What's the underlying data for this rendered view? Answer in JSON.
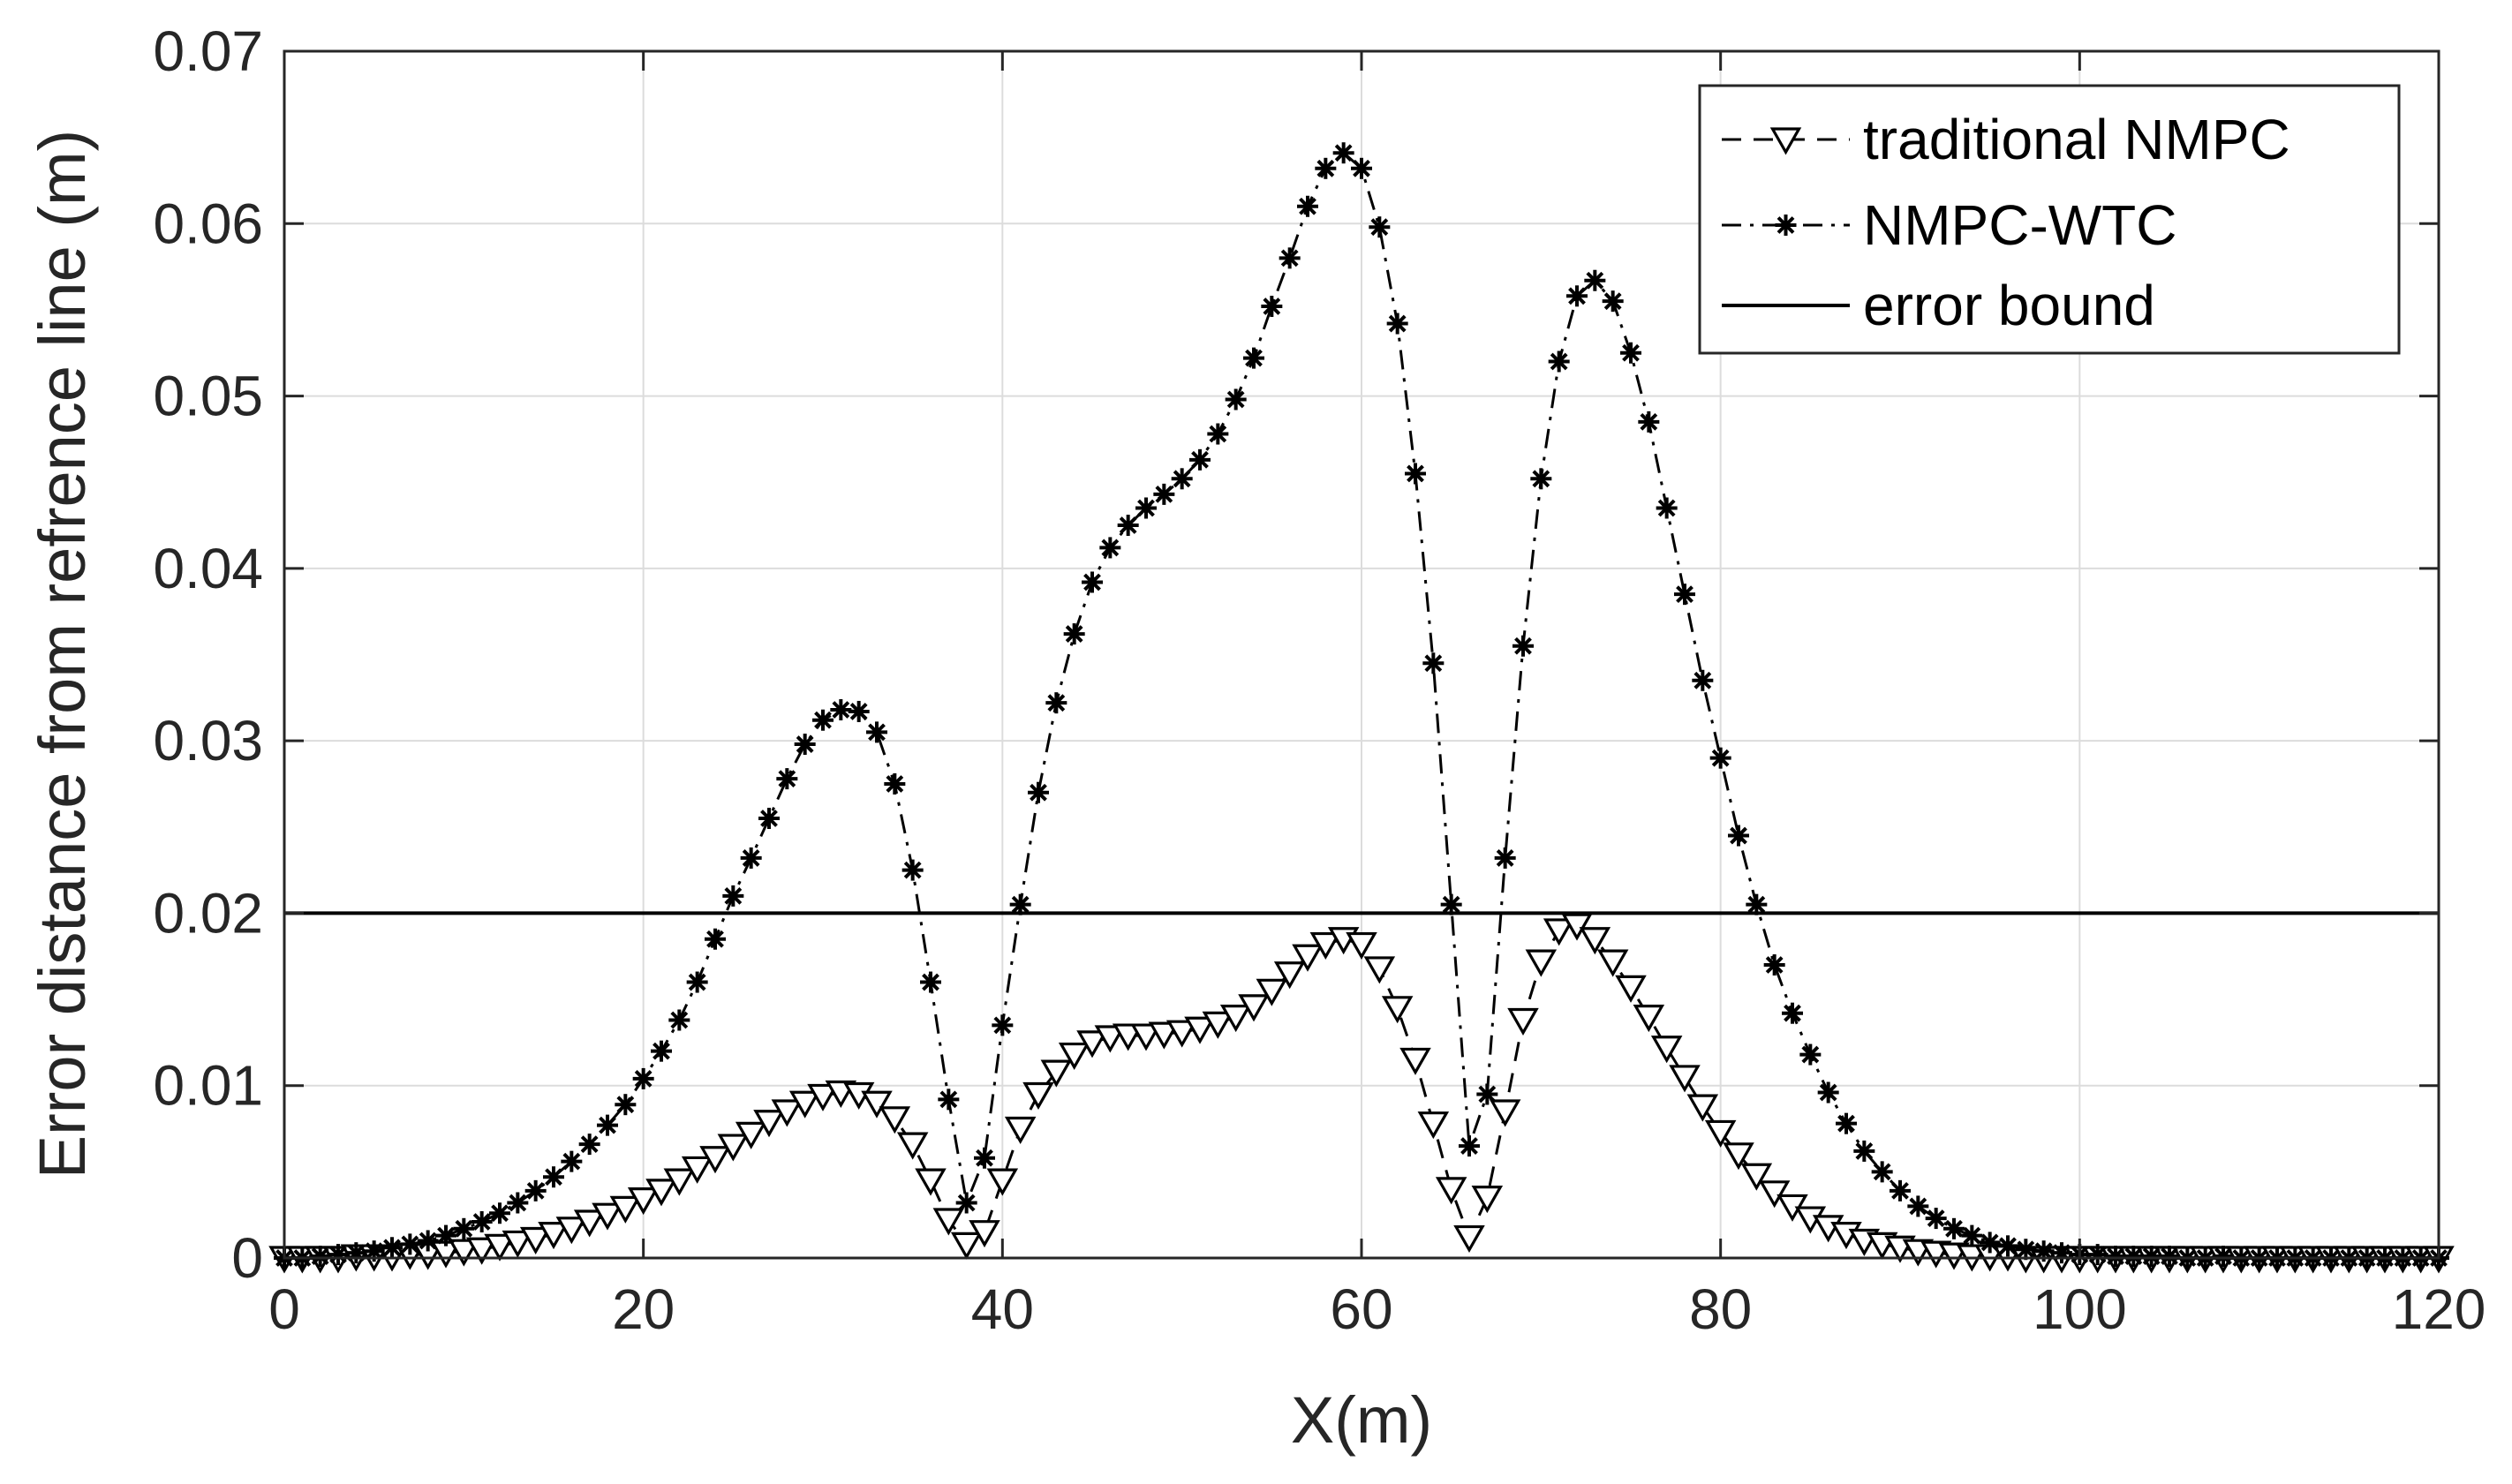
{
  "chart_data": {
    "type": "line",
    "xlabel": "X(m)",
    "ylabel": "Error distance from refrence line (m)",
    "xlim": [
      0,
      120
    ],
    "ylim": [
      0,
      0.07
    ],
    "xticks": [
      0,
      20,
      40,
      60,
      80,
      100,
      120
    ],
    "xtick_labels": [
      "0",
      "20",
      "40",
      "60",
      "80",
      "100",
      "120"
    ],
    "yticks": [
      0,
      0.01,
      0.02,
      0.03,
      0.04,
      0.05,
      0.06,
      0.07
    ],
    "ytick_labels": [
      "0",
      "0.01",
      "0.02",
      "0.03",
      "0.04",
      "0.05",
      "0.06",
      "0.07"
    ],
    "grid": true,
    "legend_position": "top-right",
    "series": [
      {
        "name": "traditional NMPC",
        "style": "dashed",
        "marker": "triangle-down",
        "color": "#000000",
        "x": [
          0,
          1,
          2,
          3,
          4,
          5,
          6,
          7,
          8,
          9,
          10,
          11,
          12,
          13,
          14,
          15,
          16,
          17,
          18,
          19,
          20,
          21,
          22,
          23,
          24,
          25,
          26,
          27,
          28,
          29,
          30,
          31,
          32,
          33,
          34,
          35,
          36,
          37,
          38,
          39,
          40,
          41,
          42,
          43,
          44,
          45,
          46,
          47,
          48,
          49,
          50,
          51,
          52,
          53,
          54,
          55,
          56,
          57,
          58,
          59,
          60,
          61,
          62,
          63,
          64,
          65,
          66,
          67,
          68,
          69,
          70,
          71,
          72,
          73,
          74,
          75,
          76,
          77,
          78,
          79,
          80,
          81,
          82,
          83,
          84,
          85,
          86,
          87,
          88,
          89,
          90,
          91,
          92,
          93,
          94,
          95,
          96,
          97,
          98,
          99,
          100,
          101,
          102,
          103,
          104,
          105,
          106,
          107,
          108,
          109,
          110,
          111,
          112,
          113,
          114,
          115,
          116,
          117,
          118,
          119,
          120
        ],
        "y": [
          0,
          0,
          0,
          0,
          0.0001,
          0.0001,
          0.0001,
          0.0002,
          0.0002,
          0.0003,
          0.0004,
          0.0005,
          0.0007,
          0.0009,
          0.0011,
          0.0014,
          0.0017,
          0.0021,
          0.0025,
          0.0029,
          0.0034,
          0.0039,
          0.0045,
          0.0052,
          0.0058,
          0.0065,
          0.0072,
          0.0079,
          0.0085,
          0.009,
          0.0094,
          0.0096,
          0.0095,
          0.009,
          0.0081,
          0.0066,
          0.0045,
          0.0022,
          0.0008,
          0.0015,
          0.0045,
          0.0075,
          0.0095,
          0.0108,
          0.0118,
          0.0125,
          0.0128,
          0.0129,
          0.0129,
          0.013,
          0.0131,
          0.0133,
          0.0136,
          0.014,
          0.0146,
          0.0155,
          0.0165,
          0.0175,
          0.0182,
          0.0185,
          0.0182,
          0.0168,
          0.0145,
          0.0115,
          0.0078,
          0.004,
          0.0012,
          0.0035,
          0.0085,
          0.0138,
          0.0172,
          0.019,
          0.0193,
          0.0185,
          0.0172,
          0.0157,
          0.014,
          0.0122,
          0.0105,
          0.0088,
          0.0073,
          0.006,
          0.0048,
          0.0038,
          0.003,
          0.0023,
          0.0018,
          0.0014,
          0.001,
          0.0008,
          0.0006,
          0.0004,
          0.0003,
          0.0002,
          0.0001,
          0.0001,
          0.0001,
          0,
          0,
          0,
          0,
          0,
          0,
          0,
          0,
          0,
          0,
          0,
          0,
          0,
          0,
          0,
          0,
          0,
          0,
          0,
          0,
          0,
          0,
          0,
          0
        ]
      },
      {
        "name": "NMPC-WTC",
        "style": "dashdot",
        "marker": "asterisk",
        "color": "#000000",
        "x": [
          0,
          1,
          2,
          3,
          4,
          5,
          6,
          7,
          8,
          9,
          10,
          11,
          12,
          13,
          14,
          15,
          16,
          17,
          18,
          19,
          20,
          21,
          22,
          23,
          24,
          25,
          26,
          27,
          28,
          29,
          30,
          31,
          32,
          33,
          34,
          35,
          36,
          37,
          38,
          39,
          40,
          41,
          42,
          43,
          44,
          45,
          46,
          47,
          48,
          49,
          50,
          51,
          52,
          53,
          54,
          55,
          56,
          57,
          58,
          59,
          60,
          61,
          62,
          63,
          64,
          65,
          66,
          67,
          68,
          69,
          70,
          71,
          72,
          73,
          74,
          75,
          76,
          77,
          78,
          79,
          80,
          81,
          82,
          83,
          84,
          85,
          86,
          87,
          88,
          89,
          90,
          91,
          92,
          93,
          94,
          95,
          96,
          97,
          98,
          99,
          100,
          101,
          102,
          103,
          104,
          105,
          106,
          107,
          108,
          109,
          110,
          111,
          112,
          113,
          114,
          115,
          116,
          117,
          118,
          119,
          120
        ],
        "y": [
          0,
          0,
          0.0001,
          0.0002,
          0.0003,
          0.0004,
          0.0006,
          0.0008,
          0.001,
          0.0013,
          0.0017,
          0.0021,
          0.0026,
          0.0032,
          0.0039,
          0.0047,
          0.0056,
          0.0066,
          0.0077,
          0.0089,
          0.0104,
          0.012,
          0.0138,
          0.016,
          0.0185,
          0.021,
          0.0232,
          0.0255,
          0.0278,
          0.0298,
          0.0312,
          0.0318,
          0.0317,
          0.0305,
          0.0275,
          0.0225,
          0.016,
          0.0092,
          0.0032,
          0.0058,
          0.0135,
          0.0205,
          0.027,
          0.0322,
          0.0362,
          0.0392,
          0.0412,
          0.0425,
          0.0435,
          0.0443,
          0.0452,
          0.0463,
          0.0478,
          0.0498,
          0.0522,
          0.0552,
          0.058,
          0.061,
          0.0632,
          0.0641,
          0.0632,
          0.0598,
          0.0542,
          0.0455,
          0.0345,
          0.0205,
          0.0065,
          0.0095,
          0.0232,
          0.0355,
          0.0452,
          0.052,
          0.0558,
          0.0567,
          0.0555,
          0.0525,
          0.0485,
          0.0435,
          0.0385,
          0.0335,
          0.029,
          0.0245,
          0.0205,
          0.017,
          0.0142,
          0.0118,
          0.0096,
          0.0078,
          0.0062,
          0.005,
          0.0039,
          0.003,
          0.0023,
          0.0017,
          0.0013,
          0.0009,
          0.0007,
          0.0005,
          0.0004,
          0.0003,
          0.0002,
          0.0002,
          0.0001,
          0.0001,
          0.0001,
          0.0001,
          0,
          0,
          0.0001,
          0,
          0,
          0,
          0,
          0,
          0,
          0,
          0,
          0,
          0,
          0,
          0
        ]
      },
      {
        "name": "error bound",
        "style": "solid",
        "marker": "none",
        "color": "#000000",
        "x": [
          0,
          120
        ],
        "y": [
          0.02,
          0.02
        ]
      }
    ]
  }
}
